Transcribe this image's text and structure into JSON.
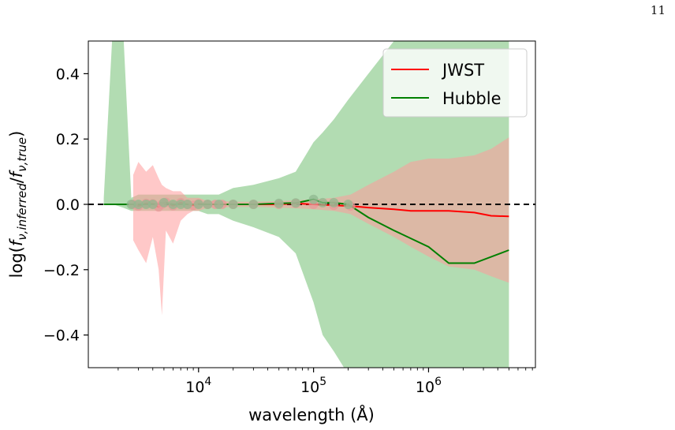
{
  "page": {
    "number": "11"
  },
  "chart_data": {
    "type": "line",
    "title": "",
    "xlabel": "wavelength (Å)",
    "ylabel": "log(fν,inferred/fν,true)",
    "xscale": "log",
    "xlim": [
      1100,
      8500000
    ],
    "ylim": [
      -0.5,
      0.5
    ],
    "x_ticks": [
      {
        "value": 10000,
        "base": "10",
        "exp": "4"
      },
      {
        "value": 100000,
        "base": "10",
        "exp": "5"
      },
      {
        "value": 1000000,
        "base": "10",
        "exp": "6"
      }
    ],
    "y_ticks": [
      {
        "value": 0.4,
        "label": "0.4"
      },
      {
        "value": 0.2,
        "label": "0.2"
      },
      {
        "value": 0.0,
        "label": "0.0"
      },
      {
        "value": -0.2,
        "label": "−0.2"
      },
      {
        "value": -0.4,
        "label": "−0.4"
      }
    ],
    "legend_position": "top-right",
    "reference_line": {
      "y": 0,
      "style": "dashed",
      "color": "#000000"
    },
    "series": [
      {
        "name": "JWST",
        "color": "#ff0000",
        "band_color": "#ff9a9a",
        "x": [
          2700,
          3000,
          3500,
          4000,
          4500,
          4800,
          5200,
          6000,
          7000,
          8000,
          9000,
          10000,
          12000,
          14000,
          16000,
          20000,
          30000,
          50000,
          70000,
          100000,
          150000,
          210000,
          300000,
          500000,
          700000,
          1000000,
          1500000,
          2500000,
          3500000,
          5000000
        ],
        "y": [
          0.0,
          -0.005,
          0.003,
          0.002,
          -0.008,
          0.0,
          0.006,
          -0.004,
          0.005,
          0.0,
          -0.003,
          0.002,
          0.0,
          0.0,
          0.0,
          0.0,
          0.0,
          0.0,
          0.003,
          0.0,
          -0.003,
          -0.005,
          -0.01,
          -0.015,
          -0.02,
          -0.02,
          -0.02,
          -0.025,
          -0.035,
          -0.037
        ],
        "lower": [
          -0.11,
          -0.14,
          -0.18,
          -0.1,
          -0.2,
          -0.34,
          -0.08,
          -0.12,
          -0.05,
          -0.03,
          -0.02,
          -0.02,
          -0.01,
          -0.01,
          -0.01,
          -0.008,
          -0.008,
          -0.01,
          -0.012,
          -0.015,
          -0.02,
          -0.03,
          -0.06,
          -0.1,
          -0.13,
          -0.16,
          -0.19,
          -0.2,
          -0.22,
          -0.24
        ],
        "upper": [
          0.09,
          0.13,
          0.1,
          0.12,
          0.08,
          0.06,
          0.05,
          0.04,
          0.04,
          0.02,
          0.02,
          0.02,
          0.01,
          0.01,
          0.01,
          0.008,
          0.008,
          0.01,
          0.012,
          0.015,
          0.02,
          0.03,
          0.06,
          0.1,
          0.13,
          0.14,
          0.14,
          0.15,
          0.17,
          0.205
        ]
      },
      {
        "name": "Hubble",
        "color": "#008000",
        "band_color": "#9fd39f",
        "x": [
          1500,
          1800,
          2200,
          2600,
          3000,
          3500,
          4000,
          5000,
          6000,
          7000,
          8000,
          10000,
          12000,
          15000,
          20000,
          30000,
          50000,
          70000,
          100000,
          120000,
          150000,
          200000,
          300000,
          500000,
          1000000,
          1500000,
          2500000,
          5000000
        ],
        "y": [
          0.0,
          0.0,
          0.0,
          0.0,
          0.0,
          0.0,
          0.0,
          0.005,
          0.0,
          0.0,
          0.0,
          0.0,
          0.0,
          0.0,
          0.0,
          0.0,
          0.003,
          0.004,
          0.015,
          0.005,
          0.005,
          0.0,
          -0.04,
          -0.08,
          -0.13,
          -0.18,
          -0.18,
          -0.14
        ],
        "lower": [
          0.0,
          0.0,
          -0.01,
          -0.02,
          -0.02,
          -0.02,
          -0.02,
          -0.02,
          -0.02,
          -0.02,
          -0.02,
          -0.02,
          -0.03,
          -0.03,
          -0.05,
          -0.07,
          -0.1,
          -0.15,
          -0.3,
          -0.4,
          -0.45,
          -0.52,
          -0.55,
          -0.6,
          -0.6,
          -0.6,
          -0.6,
          -0.6
        ],
        "upper": [
          0.02,
          0.55,
          0.55,
          0.02,
          0.03,
          0.03,
          0.03,
          0.03,
          0.03,
          0.03,
          0.03,
          0.03,
          0.03,
          0.03,
          0.05,
          0.06,
          0.08,
          0.1,
          0.19,
          0.22,
          0.26,
          0.32,
          0.4,
          0.5,
          0.55,
          0.55,
          0.55,
          0.55
        ]
      }
    ]
  }
}
